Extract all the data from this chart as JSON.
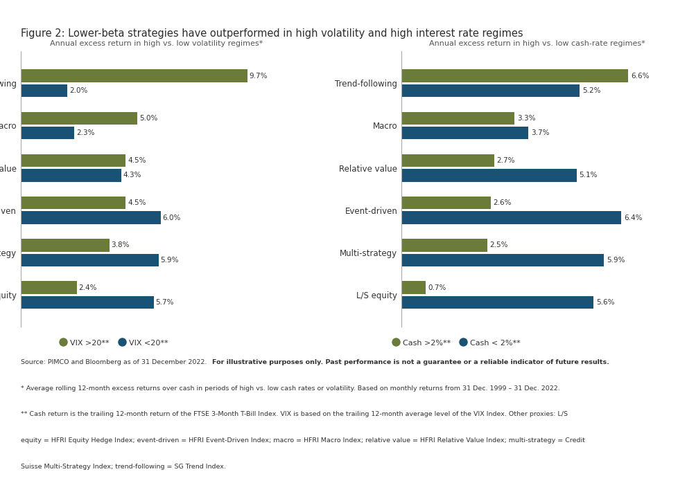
{
  "title": "Figure 2: Lower-beta strategies have outperformed in high volatility and high interest rate regimes",
  "title_color": "#2c2c2c",
  "left_subtitle": "Annual excess return in high vs. low volatility regimes*",
  "right_subtitle": "Annual excess return in high vs. low cash-rate regimes*",
  "categories": [
    "Trend-following",
    "Macro",
    "Relative value",
    "Event-driven",
    "Multi-strategy",
    "L/S equity"
  ],
  "left_high": [
    9.7,
    5.0,
    4.5,
    4.5,
    3.8,
    2.4
  ],
  "left_low": [
    2.0,
    2.3,
    4.3,
    6.0,
    5.9,
    5.7
  ],
  "right_high": [
    6.6,
    3.3,
    2.7,
    2.6,
    2.5,
    0.7
  ],
  "right_low": [
    5.2,
    3.7,
    5.1,
    6.4,
    5.9,
    5.6
  ],
  "left_high_labels": [
    "9.7%",
    "5.0%",
    "4.5%",
    "4.5%",
    "3.8%",
    "2.4%"
  ],
  "left_low_labels": [
    "2.0%",
    "2.3%",
    "4.3%",
    "6.0%",
    "5.9%",
    "5.7%"
  ],
  "right_high_labels": [
    "6.6%",
    "3.3%",
    "2.7%",
    "2.6%",
    "2.5%",
    "0.7%"
  ],
  "right_low_labels": [
    "5.2%",
    "3.7%",
    "5.1%",
    "6.4%",
    "5.9%",
    "5.6%"
  ],
  "color_high": "#6b7c3a",
  "color_low": "#1a5276",
  "left_legend_high": "VIX >20**",
  "left_legend_low": "VIX <20**",
  "right_legend_high": "Cash >2%**",
  "right_legend_low": "Cash < 2%**",
  "source_line0_normal": "Source: PIMCO and Bloomberg as of 31 December 2022. ",
  "source_line0_bold": "For illustrative purposes only. Past performance is not a guarantee or a reliable indicator of future results.",
  "source_lines": [
    "* Average rolling 12-month excess returns over cash in periods of high vs. low cash rates or volatility. Based on monthly returns from 31 Dec. 1999 – 31 Dec. 2022.",
    "** Cash return is the trailing 12-month return of the FTSE 3-Month T-Bill Index. VIX is based on the trailing 12-month average level of the VIX Index. Other proxies: L/S",
    "equity = HFRI Equity Hedge Index; event-driven = HFRI Event-Driven Index; macro = HFRI Macro Index; relative value = HFRI Relative Value Index; multi-strategy = Credit",
    "Suisse Multi-Strategy Index; trend-following = SG Trend Index."
  ],
  "background_color": "#ffffff",
  "text_color": "#333333",
  "subtitle_color": "#555555"
}
